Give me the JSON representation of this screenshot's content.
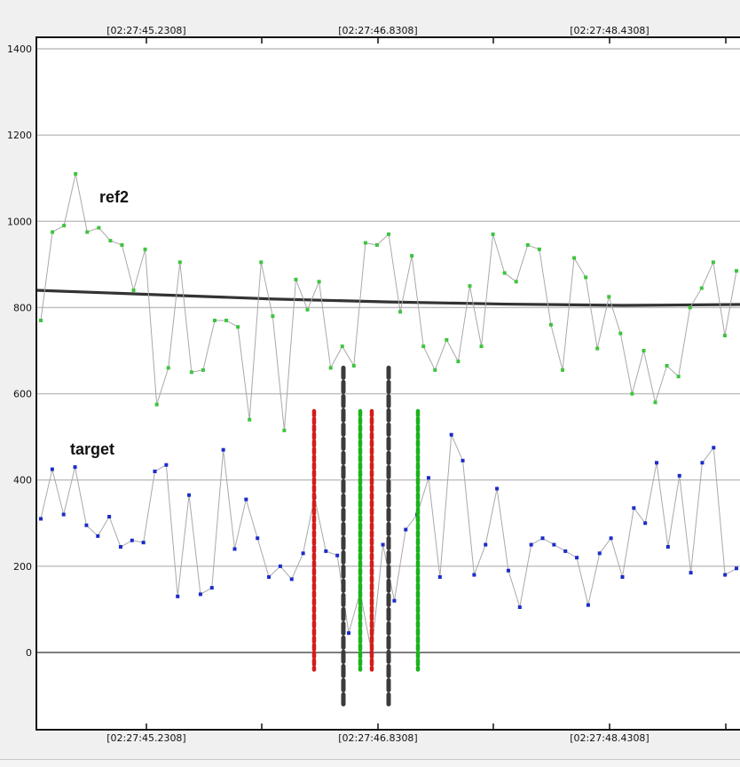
{
  "chart_data": {
    "type": "line",
    "ylim": [
      -120,
      1410
    ],
    "yticks": [
      0,
      200,
      400,
      600,
      800,
      1000,
      1200,
      1400
    ],
    "grid": true,
    "xtick_labels": [
      "[02:27:45.2308]",
      "[02:27:46.8308]",
      "[02:27:48.4308]"
    ],
    "series": [
      {
        "name": "ref2",
        "color": "#3ec43e",
        "values": [
          770,
          975,
          990,
          1110,
          975,
          985,
          955,
          945,
          840,
          935,
          575,
          660,
          905,
          650,
          655,
          770,
          770,
          755,
          540,
          905,
          780,
          515,
          865,
          795,
          860,
          660,
          710,
          665,
          950,
          945,
          970,
          790,
          920,
          710,
          655,
          725,
          675,
          850,
          710,
          970,
          880,
          860,
          945,
          935,
          760,
          655,
          915,
          870,
          705,
          825,
          740,
          600,
          700,
          580,
          665,
          640,
          800,
          845,
          905,
          735,
          885
        ]
      },
      {
        "name": "target",
        "color": "#1c2cc8",
        "values": [
          310,
          425,
          320,
          430,
          295,
          270,
          315,
          245,
          260,
          255,
          420,
          435,
          130,
          365,
          135,
          150,
          470,
          240,
          355,
          265,
          175,
          200,
          170,
          230,
          360,
          235,
          225,
          45,
          140,
          0,
          250,
          120,
          285,
          320,
          405,
          175,
          505,
          445,
          180,
          250,
          380,
          190,
          105,
          250,
          265,
          250,
          235,
          220,
          110,
          230,
          265,
          175,
          335,
          300,
          440,
          245,
          410,
          185,
          440,
          475,
          180,
          195
        ]
      }
    ],
    "trend_line": {
      "color": "#333333",
      "values": [
        840,
        830,
        820,
        813,
        808,
        805,
        807
      ]
    },
    "markers": [
      {
        "color": "#d31d1d",
        "from": -40,
        "to": 560
      },
      {
        "color": "#3b3b3b",
        "from": -120,
        "to": 660
      },
      {
        "color": "#1bb31b",
        "from": -40,
        "to": 560
      },
      {
        "color": "#d31d1d",
        "from": -40,
        "to": 560
      },
      {
        "color": "#3b3b3b",
        "from": -120,
        "to": 660
      },
      {
        "color": "#1bb31b",
        "from": -40,
        "to": 560
      }
    ]
  },
  "colors": {
    "background": "#ffffff",
    "grid": "#bdbdbd",
    "zero_line": "#555555",
    "frame": "#111111",
    "series_line": "#a9a9a9"
  }
}
